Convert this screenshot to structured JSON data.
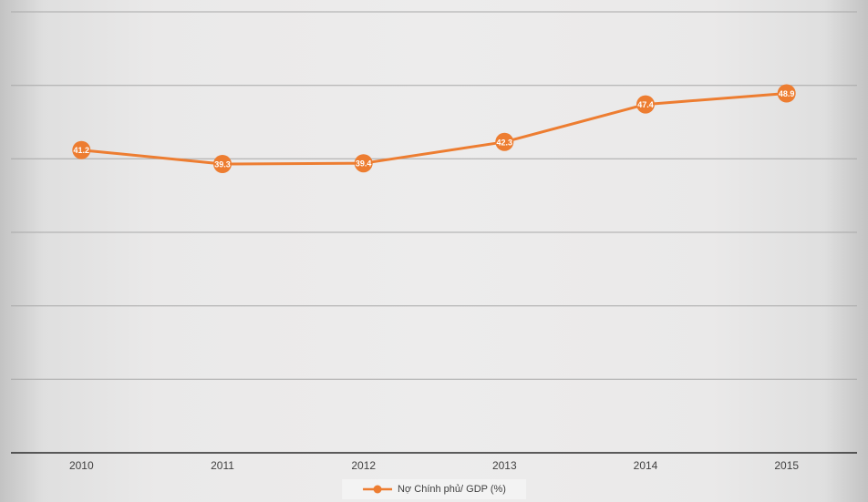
{
  "colors": {
    "series": "#ED7D31",
    "gridline": "#a8a8a8",
    "axis": "#2b2b2b",
    "category_label_text": "#404040",
    "data_label_text": "#ffffff",
    "legend_background": "#f3f3f3",
    "legend_text": "#404040"
  },
  "chart_data": {
    "type": "line",
    "categories": [
      "2010",
      "2011",
      "2012",
      "2013",
      "2014",
      "2015"
    ],
    "series": [
      {
        "name": "Nợ Chính phủ/ GDP (%)",
        "values": [
          41.2,
          39.3,
          39.4,
          42.3,
          47.4,
          48.9
        ]
      }
    ],
    "title": "",
    "xlabel": "",
    "ylabel": "",
    "ylim": [
      0,
      60
    ],
    "grid": true,
    "grid_interval": 10,
    "legend_position": "bottom",
    "data_labels": true,
    "marker": "circle-with-value-label"
  },
  "legend": {
    "label": "Nợ Chính phủ/ GDP (%)"
  }
}
